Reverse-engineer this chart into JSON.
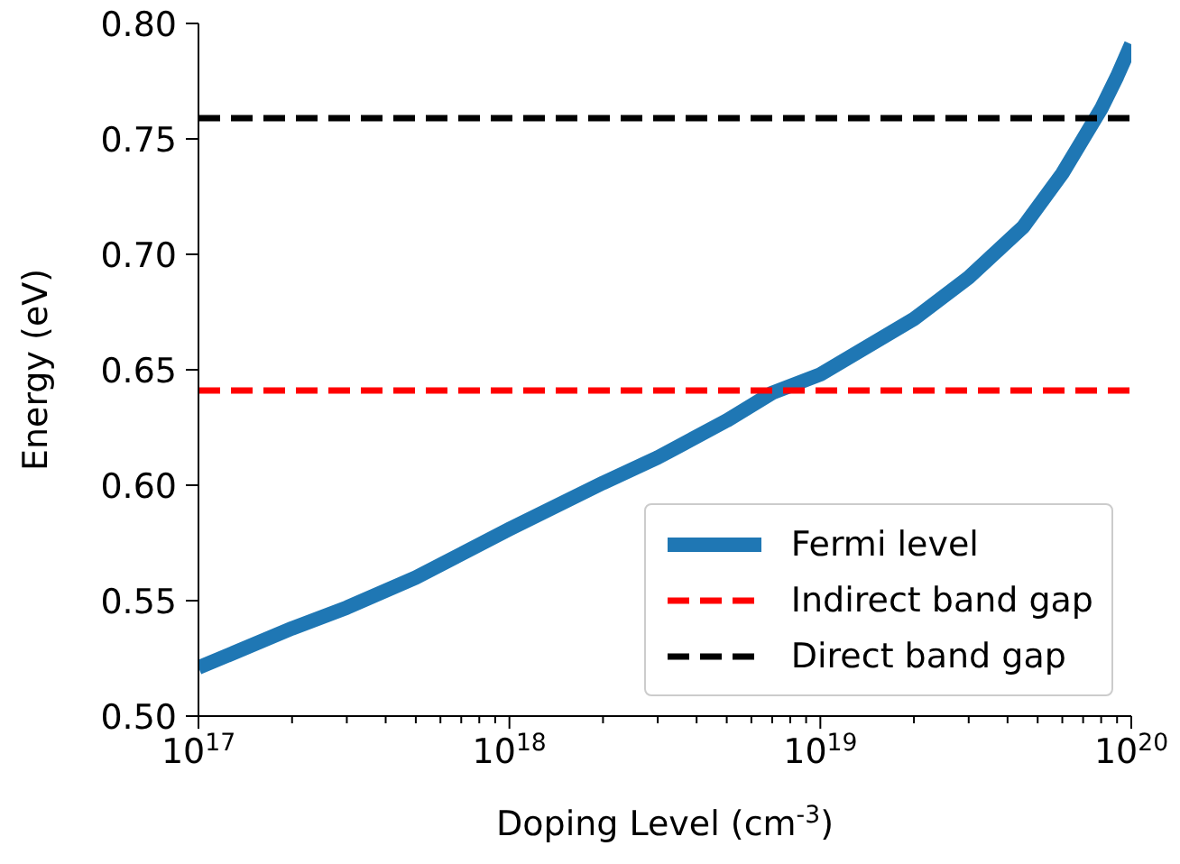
{
  "chart_data": {
    "type": "line",
    "xlabel": "Doping Level (cm$^{-3}$)",
    "ylabel": "Energy (eV)",
    "log": "x",
    "xlim": [
      1e+17,
      1e+20
    ],
    "xticks": [
      {
        "value": 1e+17,
        "label": "10$^{17}$"
      },
      {
        "value": 2e+17,
        "label": null
      },
      {
        "value": 3e+17,
        "label": null
      },
      {
        "value": 4e+17,
        "label": null
      },
      {
        "value": 5e+17,
        "label": null
      },
      {
        "value": 6e+17,
        "label": null
      },
      {
        "value": 7e+17,
        "label": null
      },
      {
        "value": 8e+17,
        "label": null
      },
      {
        "value": 9e+17,
        "label": null
      },
      {
        "value": 1e+18,
        "label": "10$^{18}$"
      },
      {
        "value": 2e+18,
        "label": null
      },
      {
        "value": 3e+18,
        "label": null
      },
      {
        "value": 4e+18,
        "label": null
      },
      {
        "value": 5e+18,
        "label": null
      },
      {
        "value": 6e+18,
        "label": null
      },
      {
        "value": 7e+18,
        "label": null
      },
      {
        "value": 8e+18,
        "label": null
      },
      {
        "value": 9e+18,
        "label": null
      },
      {
        "value": 1e+19,
        "label": "10$^{19}$"
      },
      {
        "value": 2e+19,
        "label": null
      },
      {
        "value": 3e+19,
        "label": null
      },
      {
        "value": 4e+19,
        "label": null
      },
      {
        "value": 5e+19,
        "label": null
      },
      {
        "value": 6e+19,
        "label": null
      },
      {
        "value": 7e+19,
        "label": null
      },
      {
        "value": 8e+19,
        "label": null
      },
      {
        "value": 9e+19,
        "label": null
      },
      {
        "value": 1e+20,
        "label": "10$^{20}$"
      }
    ],
    "ylim": [
      0.5,
      0.8
    ],
    "yticks": [
      {
        "value": 0.5,
        "label": "0.50"
      },
      {
        "value": 0.55,
        "label": "0.55"
      },
      {
        "value": 0.6,
        "label": "0.60"
      },
      {
        "value": 0.65,
        "label": "0.65"
      },
      {
        "value": 0.7,
        "label": "0.70"
      },
      {
        "value": 0.75,
        "label": "0.75"
      },
      {
        "value": 0.8,
        "label": "0.80"
      }
    ],
    "grid": false,
    "legend": "bottom right",
    "marker": "none",
    "series": [
      {
        "name": "Fermi level",
        "color": "#1f77b4",
        "line_style": "solid",
        "x": [
          1e+17,
          2e+17,
          3e+17,
          5e+17,
          1e+18,
          2e+18,
          3e+18,
          5e+18,
          7e+18,
          1e+19,
          2e+19,
          3e+19,
          4.5e+19,
          6e+19,
          7e+19,
          8e+19,
          9e+19,
          1e+20
        ],
        "values": [
          0.521,
          0.538,
          0.547,
          0.56,
          0.581,
          0.601,
          0.612,
          0.628,
          0.64,
          0.648,
          0.672,
          0.69,
          0.712,
          0.735,
          0.75,
          0.763,
          0.777,
          0.791
        ]
      },
      {
        "name": "Indirect band gap",
        "color": "#ff0000",
        "line_style": "dashed",
        "x": [
          1e+17,
          1e+20
        ],
        "values": [
          0.641,
          0.641
        ]
      },
      {
        "name": "Direct band gap",
        "color": "#000000",
        "line_style": "dashed",
        "x": [
          1e+17,
          1e+20
        ],
        "values": [
          0.759,
          0.759
        ]
      }
    ]
  }
}
